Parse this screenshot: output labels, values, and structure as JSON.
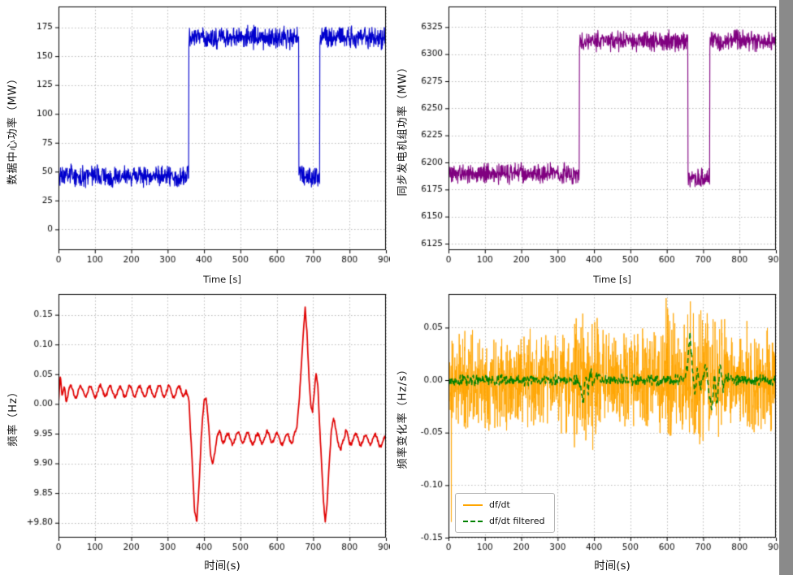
{
  "page": {
    "background": "#ffffff",
    "right_strip_color": "#8a8a8a"
  },
  "chart_data": [
    {
      "type": "line",
      "name": "data-center-power",
      "title": "",
      "xlabel": "Time [s]",
      "ylabel": "数据中心功率（MW）",
      "xlim": [
        0,
        900
      ],
      "ylim": [
        -18,
        193
      ],
      "xticks": [
        0,
        100,
        200,
        300,
        400,
        500,
        600,
        700,
        800,
        900
      ],
      "yticks": [
        0,
        25,
        50,
        75,
        100,
        125,
        150,
        175
      ],
      "grid": true,
      "series": [
        {
          "name": "data-center-power",
          "color": "#0000cd",
          "width": 1.1,
          "kind": "steps",
          "dt": 0.8,
          "seed": 3,
          "noise": 11,
          "segments": [
            [
              0,
              358,
              46
            ],
            [
              358,
              660,
              166
            ],
            [
              660,
              718,
              46
            ],
            [
              718,
              900,
              166
            ]
          ]
        }
      ]
    },
    {
      "type": "line",
      "name": "synchronous-generator-power",
      "title": "",
      "xlabel": "Time [s]",
      "ylabel": "同步发电机组功率（MW）",
      "xlim": [
        0,
        900
      ],
      "ylim": [
        6119,
        6344
      ],
      "xticks": [
        0,
        100,
        200,
        300,
        400,
        500,
        600,
        700,
        800,
        900
      ],
      "yticks": [
        6125,
        6150,
        6175,
        6200,
        6225,
        6250,
        6275,
        6300,
        6325
      ],
      "grid": true,
      "series": [
        {
          "name": "generator-power",
          "color": "#800080",
          "width": 1.1,
          "kind": "steps",
          "dt": 0.8,
          "seed": 5,
          "noise": 11,
          "segments": [
            [
              0,
              360,
              6190
            ],
            [
              360,
              658,
              6312
            ],
            [
              658,
              718,
              6186
            ],
            [
              718,
              900,
              6312
            ]
          ]
        }
      ]
    },
    {
      "type": "line",
      "name": "frequency",
      "title": "",
      "xlabel": "时间(s)",
      "ylabel": "频率（Hz）",
      "xlim": [
        0,
        900
      ],
      "ylim": [
        49.775,
        50.185
      ],
      "xticks": [
        0,
        100,
        200,
        300,
        400,
        500,
        600,
        700,
        800,
        900
      ],
      "yticks": [
        49.8,
        49.85,
        49.9,
        49.95,
        50.0,
        50.05,
        50.1,
        50.15
      ],
      "ytick_labels": [
        "+9.80",
        "9.85",
        "9.90",
        "9.95",
        "0.00",
        "0.05",
        "0.10",
        "0.15"
      ],
      "grid": true,
      "series": [
        {
          "name": "frequency",
          "color": "#e00000",
          "width": 1.7,
          "kind": "keypoints",
          "dt": 1.2,
          "seed": 9,
          "jitter": 0.0035,
          "wiggle": {
            "amplitude": 0.009,
            "period": 27,
            "regions": [
              [
                18,
                352
              ],
              [
                445,
                645
              ],
              [
                788,
                900
              ]
            ]
          },
          "keypoints": [
            [
              0,
              50.0
            ],
            [
              5,
              50.048
            ],
            [
              10,
              50.012
            ],
            [
              16,
              50.03
            ],
            [
              22,
              50.012
            ],
            [
              30,
              50.022
            ],
            [
              45,
              50.018
            ],
            [
              60,
              50.022
            ],
            [
              90,
              50.02
            ],
            [
              120,
              50.022
            ],
            [
              160,
              50.02
            ],
            [
              200,
              50.022
            ],
            [
              240,
              50.02
            ],
            [
              280,
              50.022
            ],
            [
              320,
              50.02
            ],
            [
              350,
              50.022
            ],
            [
              358,
              50.01
            ],
            [
              366,
              49.92
            ],
            [
              374,
              49.82
            ],
            [
              380,
              49.802
            ],
            [
              386,
              49.86
            ],
            [
              393,
              49.95
            ],
            [
              400,
              50.005
            ],
            [
              406,
              50.01
            ],
            [
              412,
              49.97
            ],
            [
              418,
              49.915
            ],
            [
              424,
              49.9
            ],
            [
              430,
              49.92
            ],
            [
              436,
              49.945
            ],
            [
              442,
              49.955
            ],
            [
              450,
              49.945
            ],
            [
              470,
              49.94
            ],
            [
              500,
              49.945
            ],
            [
              540,
              49.94
            ],
            [
              580,
              49.945
            ],
            [
              620,
              49.94
            ],
            [
              645,
              49.943
            ],
            [
              655,
              49.96
            ],
            [
              662,
              50.01
            ],
            [
              668,
              50.07
            ],
            [
              674,
              50.13
            ],
            [
              678,
              50.162
            ],
            [
              683,
              50.12
            ],
            [
              688,
              50.05
            ],
            [
              693,
              50.0
            ],
            [
              698,
              49.985
            ],
            [
              703,
              50.02
            ],
            [
              708,
              50.052
            ],
            [
              713,
              50.03
            ],
            [
              718,
              49.96
            ],
            [
              723,
              49.9
            ],
            [
              728,
              49.84
            ],
            [
              733,
              49.802
            ],
            [
              738,
              49.83
            ],
            [
              744,
              49.9
            ],
            [
              750,
              49.955
            ],
            [
              756,
              49.975
            ],
            [
              762,
              49.96
            ],
            [
              768,
              49.935
            ],
            [
              775,
              49.922
            ],
            [
              782,
              49.938
            ],
            [
              790,
              49.948
            ],
            [
              800,
              49.94
            ],
            [
              820,
              49.942
            ],
            [
              840,
              49.938
            ],
            [
              860,
              49.942
            ],
            [
              880,
              49.938
            ],
            [
              900,
              49.935
            ]
          ]
        }
      ]
    },
    {
      "type": "line",
      "name": "rocof",
      "title": "",
      "xlabel": "时间(s)",
      "ylabel": "频率变化率（Hz/s）",
      "xlim": [
        0,
        900
      ],
      "ylim": [
        -0.15,
        0.082
      ],
      "xticks": [
        0,
        100,
        200,
        300,
        400,
        500,
        600,
        700,
        800,
        900
      ],
      "yticks": [
        -0.15,
        -0.1,
        -0.05,
        0,
        0.05
      ],
      "ytick_labels": [
        "-0.15",
        "-0.10",
        "-0.05",
        "0.00",
        "0.05"
      ],
      "grid": true,
      "legend": {
        "position": "lower left",
        "entries": [
          {
            "label": "df/dt",
            "color": "#FFA500",
            "dash": false
          },
          {
            "label": "df/dt filtered",
            "color": "#008000",
            "dash": true
          }
        ]
      },
      "series": [
        {
          "name": "dfdt-raw",
          "color": "#FFA500",
          "width": 0.9,
          "kind": "noise",
          "dt": 0.6,
          "seed": 11,
          "mean": 0,
          "amp": 0.052,
          "bursts": [
            [
              345,
              415,
              1.35
            ],
            [
              590,
              760,
              1.45
            ],
            [
              815,
              900,
              1.2
            ]
          ],
          "events": [
            [
              8,
              -0.135
            ],
            [
              598,
              0.078
            ],
            [
              665,
              0.075
            ]
          ]
        },
        {
          "name": "dfdt-filtered",
          "color": "#008000",
          "width": 1.5,
          "dash": [
            6,
            4
          ],
          "kind": "keypoints",
          "dt": 1.2,
          "seed": 13,
          "jitter": 0.006,
          "keypoints": [
            [
              0,
              0
            ],
            [
              100,
              0
            ],
            [
              200,
              0
            ],
            [
              300,
              0
            ],
            [
              355,
              0
            ],
            [
              363,
              -0.008
            ],
            [
              370,
              -0.022
            ],
            [
              377,
              0.005
            ],
            [
              384,
              -0.012
            ],
            [
              391,
              0.01
            ],
            [
              398,
              -0.006
            ],
            [
              408,
              0.006
            ],
            [
              420,
              0
            ],
            [
              500,
              0
            ],
            [
              600,
              0
            ],
            [
              648,
              0
            ],
            [
              656,
              0.012
            ],
            [
              664,
              0.042
            ],
            [
              671,
              0.01
            ],
            [
              677,
              -0.015
            ],
            [
              684,
              0.012
            ],
            [
              692,
              -0.008
            ],
            [
              700,
              0.004
            ],
            [
              708,
              0.015
            ],
            [
              716,
              -0.01
            ],
            [
              724,
              -0.032
            ],
            [
              731,
              0.008
            ],
            [
              738,
              -0.022
            ],
            [
              746,
              0.015
            ],
            [
              754,
              -0.008
            ],
            [
              762,
              0.004
            ],
            [
              775,
              0
            ],
            [
              850,
              0
            ],
            [
              900,
              0
            ]
          ]
        }
      ]
    }
  ]
}
